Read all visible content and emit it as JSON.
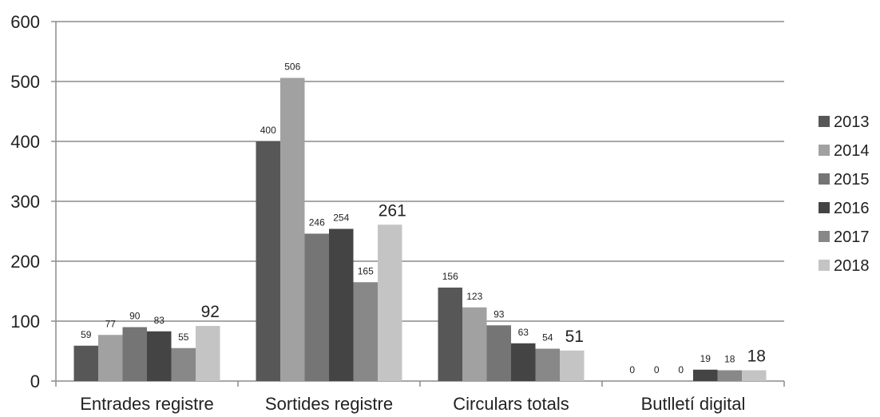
{
  "chart_data": {
    "type": "bar",
    "categories": [
      "Entrades registre",
      "Sortides registre",
      "Circulars totals",
      "Butlletí digital"
    ],
    "series": [
      {
        "name": "2013",
        "values": [
          59,
          400,
          156,
          0
        ],
        "color": "#575757"
      },
      {
        "name": "2014",
        "values": [
          77,
          506,
          123,
          0
        ],
        "color": "#a1a1a1"
      },
      {
        "name": "2015",
        "values": [
          90,
          246,
          93,
          0
        ],
        "color": "#757575"
      },
      {
        "name": "2016",
        "values": [
          83,
          254,
          63,
          19
        ],
        "color": "#444444"
      },
      {
        "name": "2017",
        "values": [
          55,
          165,
          54,
          18
        ],
        "color": "#888888"
      },
      {
        "name": "2018",
        "values": [
          92,
          261,
          51,
          18
        ],
        "color": "#c4c4c4"
      }
    ],
    "ylim": [
      0,
      600
    ],
    "yticks": [
      0,
      100,
      200,
      300,
      400,
      500,
      600
    ],
    "grid": true,
    "legend_position": "right",
    "title": "",
    "xlabel": "",
    "ylabel": ""
  }
}
